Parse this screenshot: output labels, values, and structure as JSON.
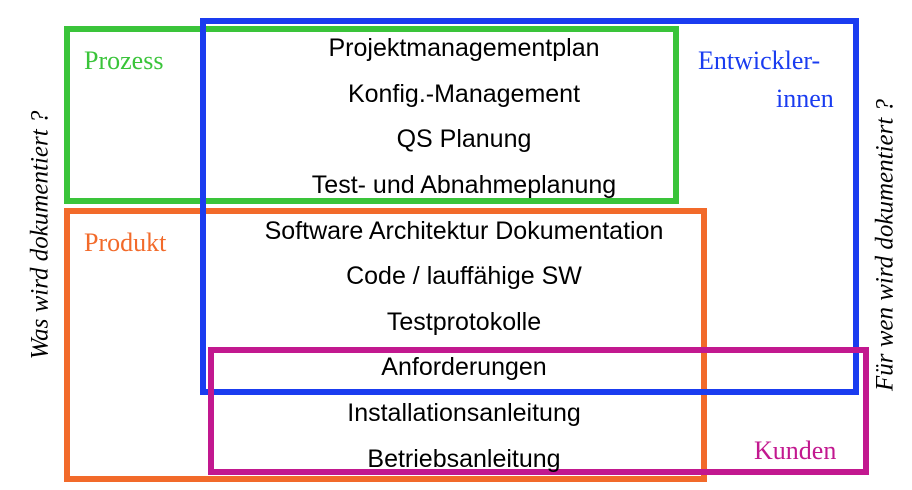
{
  "categories": {
    "prozess": "Prozess",
    "produkt": "Produkt",
    "entwickler_line1": "Entwickler-",
    "entwickler_line2": "innen",
    "kunden": "Kunden"
  },
  "side_labels": {
    "left": "Was  wird dokumentiert ?",
    "right": "Für wen wird dokumentiert ?"
  },
  "items": [
    "Projektmanagementplan",
    "Konfig.-Management",
    "QS Planung",
    "Test- und Abnahmeplanung",
    "Software Architektur Dokumentation",
    "Code / lauffähige SW",
    "Testprotokolle",
    "Anforderungen",
    "Installationsanleitung",
    "Betriebsanleitung"
  ],
  "colors": {
    "prozess": "#3ac43a",
    "produkt": "#f26a2a",
    "entwickler": "#1a3cf0",
    "kunden": "#c2188f"
  }
}
